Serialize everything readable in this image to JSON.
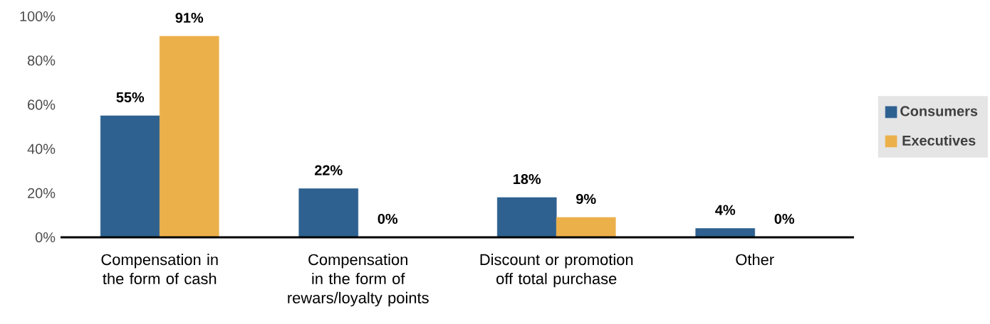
{
  "chart_data": {
    "type": "bar",
    "categories": [
      "Compensation in the form of cash",
      "Compensation in the form of rewars/loyalty points",
      "Discount or promotion off total purchase",
      "Other"
    ],
    "series": [
      {
        "name": "Consumers",
        "color": "#2e6190",
        "values": [
          55,
          22,
          18,
          4
        ],
        "value_labels": [
          "55%",
          "22%",
          "18%",
          "4%"
        ]
      },
      {
        "name": "Executives",
        "color": "#ecb04a",
        "values": [
          91,
          0,
          9,
          0
        ],
        "value_labels": [
          "91%",
          "0%",
          "9%",
          "0%"
        ]
      }
    ],
    "ylim": [
      0,
      100
    ],
    "yticks": [
      {
        "value": 0,
        "label": "0%"
      },
      {
        "value": 20,
        "label": "20%"
      },
      {
        "value": 40,
        "label": "40%"
      },
      {
        "value": 60,
        "label": "60%"
      },
      {
        "value": 80,
        "label": "80%"
      },
      {
        "value": 100,
        "label": "100%"
      }
    ],
    "legend": "right",
    "grid": false
  }
}
